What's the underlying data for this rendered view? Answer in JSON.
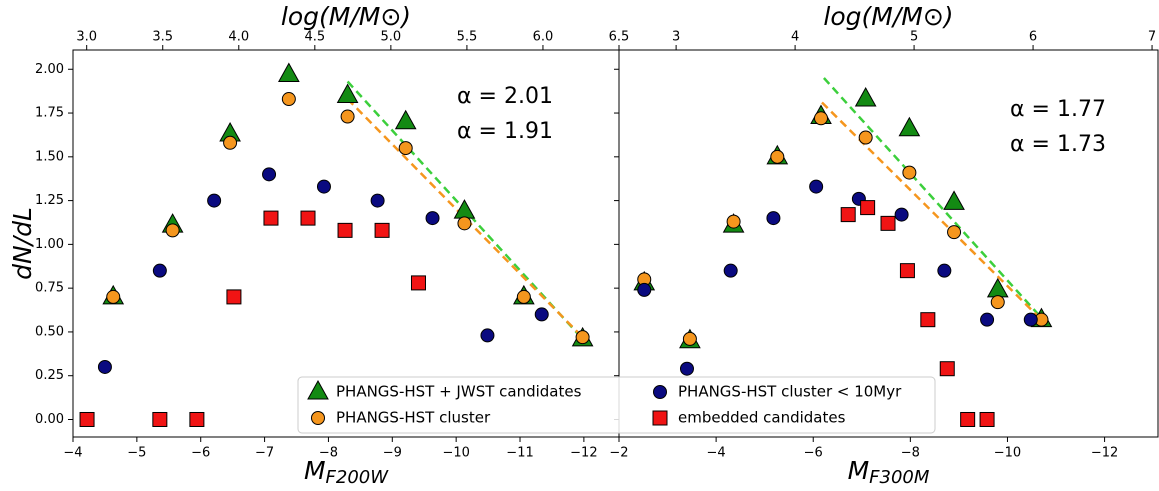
{
  "chart_data": [
    {
      "type": "scatter",
      "ylabel": "dN/dL",
      "xlabel": "M",
      "xlabel_sub": "F200W",
      "x2label": "log(M/M⊙)",
      "xlim": [
        -4,
        -12.55
      ],
      "xticks": [
        {
          "value": -4,
          "label": "−4"
        },
        {
          "value": -5,
          "label": "−5"
        },
        {
          "value": -6,
          "label": "−6"
        },
        {
          "value": -7,
          "label": "−7"
        },
        {
          "value": -8,
          "label": "−8"
        },
        {
          "value": -9,
          "label": "−9"
        },
        {
          "value": -10,
          "label": "−10"
        },
        {
          "value": -11,
          "label": "−11"
        },
        {
          "value": -12,
          "label": "−12"
        }
      ],
      "x2lim": [
        2.91,
        6.5
      ],
      "x2ticks": [
        {
          "value": 3.0,
          "label": "3.0"
        },
        {
          "value": 3.5,
          "label": "3.5"
        },
        {
          "value": 4.0,
          "label": "4.0"
        },
        {
          "value": 4.5,
          "label": "4.5"
        },
        {
          "value": 5.0,
          "label": "5.0"
        },
        {
          "value": 5.5,
          "label": "5.5"
        },
        {
          "value": 6.0,
          "label": "6.0"
        },
        {
          "value": 6.5,
          "label": "6.5"
        }
      ],
      "ylim": [
        -0.1,
        2.11
      ],
      "yticks": [
        {
          "value": 0,
          "label": "0.00"
        },
        {
          "value": 0.25,
          "label": "0.25"
        },
        {
          "value": 0.5,
          "label": "0.50"
        },
        {
          "value": 0.75,
          "label": "0.75"
        },
        {
          "value": 1.0,
          "label": "1.00"
        },
        {
          "value": 1.25,
          "label": "1.25"
        },
        {
          "value": 1.5,
          "label": "1.50"
        },
        {
          "value": 1.75,
          "label": "1.75"
        },
        {
          "value": 2.0,
          "label": "2.00"
        }
      ],
      "legend": "lower center",
      "series": [
        {
          "name": "PHANGS-HST + JWST candidates",
          "color": "#138a13",
          "marker": "triangle",
          "x": [
            -4.63,
            -5.56,
            -6.46,
            -7.38,
            -8.3,
            -9.21,
            -10.13,
            -11.06,
            -11.98
          ],
          "values": [
            0.7,
            1.11,
            1.63,
            1.97,
            1.85,
            1.7,
            1.19,
            0.7,
            0.46
          ]
        },
        {
          "name": "PHANGS-HST cluster",
          "color": "#f5961e",
          "marker": "circle",
          "x": [
            -4.63,
            -5.56,
            -6.46,
            -7.38,
            -8.3,
            -9.21,
            -10.13,
            -11.06,
            -11.98
          ],
          "values": [
            0.7,
            1.08,
            1.58,
            1.83,
            1.73,
            1.55,
            1.12,
            0.7,
            0.47
          ]
        },
        {
          "name": "PHANGS-HST cluster < 10Myr",
          "color": "#0a0a80",
          "marker": "circle",
          "x": [
            -4.5,
            -5.36,
            -6.21,
            -7.07,
            -7.93,
            -8.77,
            -9.63,
            -10.49,
            -11.34
          ],
          "values": [
            0.3,
            0.85,
            1.25,
            1.4,
            1.33,
            1.25,
            1.15,
            0.48,
            0.6
          ]
        },
        {
          "name": "embedded candidates",
          "color": "#f01414",
          "marker": "square",
          "x": [
            -4.22,
            -5.36,
            -5.94,
            -6.52,
            -7.1,
            -7.68,
            -8.26,
            -8.84,
            -9.41
          ],
          "values": [
            0,
            0,
            0,
            0.7,
            1.15,
            1.15,
            1.08,
            1.08,
            0.78
          ]
        }
      ],
      "fits": [
        {
          "color": "#3ccf3c",
          "x": [
            -8.3,
            -11.98
          ],
          "values": [
            1.93,
            0.46
          ]
        },
        {
          "color": "#f5961e",
          "x": [
            -8.3,
            -11.98
          ],
          "values": [
            1.83,
            0.47
          ]
        }
      ],
      "annotations": [
        {
          "text": "α = 2.01",
          "color": "#138a13"
        },
        {
          "text": "α = 1.91",
          "color": "#f5961e"
        }
      ]
    },
    {
      "type": "scatter",
      "xlabel": "M",
      "xlabel_sub": "F300M",
      "x2label": "log(M/M⊙)",
      "xlim": [
        -2,
        -13.1
      ],
      "xticks": [
        {
          "value": -2,
          "label": "−2"
        },
        {
          "value": -4,
          "label": "−4"
        },
        {
          "value": -6,
          "label": "−6"
        },
        {
          "value": -8,
          "label": "−8"
        },
        {
          "value": -10,
          "label": "−10"
        },
        {
          "value": -12,
          "label": "−12"
        }
      ],
      "x2lim": [
        2.52,
        7.05
      ],
      "x2ticks": [
        3,
        4,
        5,
        6,
        7
      ],
      "ylim": [
        -0.1,
        2.11
      ],
      "yticks": [
        0,
        0.25,
        0.5,
        0.75,
        1.0,
        1.25,
        1.5,
        1.75,
        2.0
      ],
      "series": [
        {
          "color": "#138a13",
          "marker": "triangle",
          "x": [
            -2.52,
            -3.46,
            -4.36,
            -5.26,
            -6.16,
            -7.08,
            -7.98,
            -8.9,
            -9.8,
            -10.7
          ],
          "values": [
            0.78,
            0.45,
            1.11,
            1.5,
            1.73,
            1.83,
            1.66,
            1.24,
            0.74,
            0.57
          ]
        },
        {
          "color": "#f5961e",
          "marker": "circle",
          "x": [
            -2.52,
            -3.46,
            -4.36,
            -5.26,
            -6.16,
            -7.08,
            -7.98,
            -8.9,
            -9.8,
            -10.7
          ],
          "values": [
            0.8,
            0.46,
            1.13,
            1.5,
            1.72,
            1.61,
            1.41,
            1.07,
            0.67,
            0.57
          ]
        },
        {
          "color": "#0a0a80",
          "marker": "circle",
          "x": [
            -2.52,
            -3.4,
            -4.3,
            -5.18,
            -6.06,
            -6.94,
            -7.82,
            -8.7,
            -9.58,
            -10.48
          ],
          "values": [
            0.74,
            0.29,
            0.85,
            1.15,
            1.33,
            1.26,
            1.17,
            0.85,
            0.57,
            0.57
          ]
        },
        {
          "color": "#f01414",
          "marker": "square",
          "x": [
            -6.72,
            -7.12,
            -7.54,
            -7.94,
            -8.36,
            -8.76,
            -9.18,
            -9.58
          ],
          "values": [
            1.17,
            1.21,
            1.12,
            0.85,
            0.57,
            0.29,
            0,
            0
          ]
        }
      ],
      "fits": [
        {
          "color": "#3ccf3c",
          "x": [
            -6.22,
            -10.7
          ],
          "values": [
            1.95,
            0.58
          ]
        },
        {
          "color": "#f5961e",
          "x": [
            -6.18,
            -10.7
          ],
          "values": [
            1.81,
            0.57
          ]
        }
      ],
      "annotations": [
        {
          "text": "α = 1.77",
          "color": "#138a13"
        },
        {
          "text": "α = 1.73",
          "color": "#f5961e"
        }
      ]
    }
  ]
}
